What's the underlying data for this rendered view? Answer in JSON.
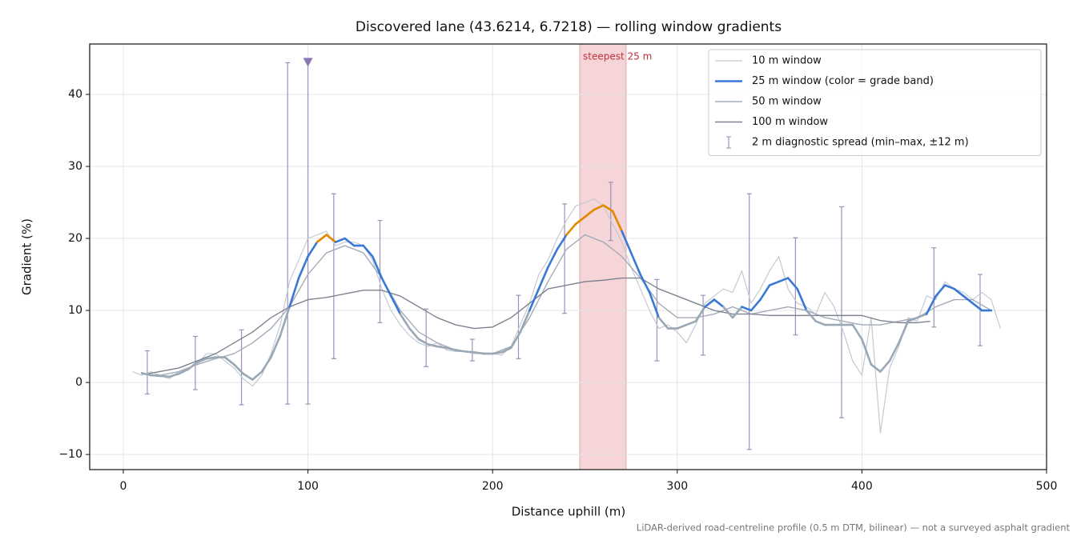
{
  "chart_data": {
    "type": "line",
    "title": "Discovered lane (43.6214, 6.7218) — rolling window gradients",
    "x_label": "Distance uphill (m)",
    "y_label": "Gradient (%)",
    "footnote": "LiDAR-derived road-centreline profile (0.5 m DTM, bilinear) — not a surveyed asphalt gradient",
    "xlim": [
      -18.2,
      500
    ],
    "ylim": [
      -12.1,
      47
    ],
    "xticks": [
      0,
      100,
      200,
      300,
      400,
      500
    ],
    "yticks": [
      {
        "value": -10,
        "label": "−10"
      },
      0,
      10,
      20,
      30,
      40
    ],
    "grid": true,
    "legend": "upper right",
    "highlight": {
      "x": [
        247.2,
        272.3
      ],
      "label": "steepest 25 m",
      "color": "#f5d5d8",
      "text_color": "#c0303a"
    },
    "series": [
      {
        "name": "10 m window",
        "color": "#c3cad3",
        "width": 1.2,
        "x": [
          5,
          10,
          15,
          20,
          25,
          30,
          35,
          40,
          45,
          50,
          55,
          60,
          65,
          70,
          75,
          80,
          85,
          90,
          95,
          100,
          105,
          110,
          115,
          120,
          125,
          130,
          135,
          140,
          145,
          150,
          155,
          160,
          165,
          170,
          175,
          180,
          185,
          190,
          195,
          200,
          205,
          210,
          215,
          220,
          225,
          230,
          235,
          240,
          245,
          250,
          255,
          260,
          265,
          270,
          275,
          280,
          285,
          290,
          295,
          300,
          305,
          310,
          315,
          320,
          325,
          330,
          335,
          340,
          345,
          350,
          355,
          360,
          365,
          370,
          375,
          380,
          385,
          390,
          395,
          400,
          405,
          410,
          415,
          420,
          425,
          430,
          435,
          440,
          445,
          450,
          455,
          460,
          465,
          470,
          475
        ],
        "values": [
          1.5,
          1,
          1.5,
          1,
          0.5,
          1.5,
          2,
          2.5,
          4,
          4,
          3,
          2,
          0.5,
          -0.5,
          1,
          4,
          8,
          14,
          17,
          20,
          20.5,
          21,
          19,
          19.5,
          19.5,
          19,
          17,
          13,
          10,
          8,
          6.5,
          5.5,
          5,
          5.5,
          4.5,
          4.3,
          4.3,
          4,
          4,
          4,
          3.8,
          5,
          8,
          11,
          15,
          17,
          20,
          22.5,
          24.5,
          25,
          25.5,
          24.5,
          22,
          19.5,
          16,
          13,
          10,
          7.5,
          8,
          7,
          5.5,
          8,
          11,
          12,
          13,
          12.5,
          15.5,
          11,
          13,
          15.5,
          17.5,
          13,
          11,
          10.5,
          9.5,
          12.5,
          10.5,
          7,
          3,
          1,
          9,
          -7,
          2,
          5,
          9,
          8.5,
          12,
          11.5,
          14,
          13,
          12.5,
          11.5,
          12.5,
          11.5,
          7.5
        ]
      },
      {
        "name": "25 m window (color = grade band)",
        "color": "#3a78d6",
        "width": 2.6,
        "bands": [
          {
            "max": 10,
            "color": "#9aa8b6"
          },
          {
            "max": 20,
            "color": "#3a78d6"
          },
          {
            "color": "#e08a00"
          }
        ],
        "x": [
          10,
          15,
          20,
          25,
          30,
          35,
          40,
          45,
          50,
          55,
          60,
          65,
          70,
          75,
          80,
          85,
          90,
          95,
          100,
          105,
          110,
          115,
          120,
          125,
          130,
          135,
          140,
          145,
          150,
          155,
          160,
          165,
          170,
          175,
          180,
          185,
          190,
          195,
          200,
          205,
          210,
          215,
          220,
          225,
          230,
          235,
          240,
          245,
          250,
          255,
          260,
          265,
          270,
          275,
          280,
          285,
          290,
          295,
          300,
          305,
          310,
          315,
          320,
          325,
          330,
          335,
          340,
          345,
          350,
          355,
          360,
          365,
          370,
          375,
          380,
          385,
          390,
          395,
          400,
          405,
          410,
          415,
          420,
          425,
          430,
          435,
          440,
          445,
          450,
          455,
          460,
          465,
          470
        ],
        "values": [
          1.3,
          1,
          0.9,
          0.8,
          1.2,
          1.8,
          2.8,
          3.3,
          3.5,
          3.5,
          2.5,
          1.2,
          0.4,
          1.5,
          3.5,
          6.5,
          10.5,
          14.5,
          17.5,
          19.5,
          20.5,
          19.5,
          20,
          19,
          19,
          17.5,
          14.5,
          12,
          9.5,
          7.5,
          6,
          5.3,
          5,
          4.8,
          4.5,
          4.3,
          4.2,
          4,
          4,
          4.2,
          4.8,
          7,
          10,
          13,
          16,
          18.5,
          20.5,
          22,
          23,
          24,
          24.6,
          23.8,
          21,
          18,
          15,
          12.5,
          9,
          7.5,
          7.5,
          8,
          8.5,
          10.5,
          11.5,
          10.5,
          9,
          10.5,
          10,
          11.5,
          13.5,
          14,
          14.5,
          13,
          10,
          8.5,
          8,
          8,
          8,
          8,
          6,
          2.5,
          1.5,
          3,
          5.5,
          8.5,
          9,
          9.5,
          12,
          13.5,
          13,
          12,
          11,
          10,
          10
        ]
      },
      {
        "name": "50 m window",
        "color": "#a3abb8",
        "width": 1.4,
        "x": [
          10,
          20,
          30,
          40,
          50,
          60,
          70,
          80,
          90,
          100,
          110,
          120,
          130,
          140,
          150,
          160,
          170,
          180,
          190,
          200,
          210,
          220,
          230,
          240,
          250,
          260,
          270,
          280,
          290,
          300,
          310,
          320,
          330,
          340,
          350,
          360,
          370,
          380,
          390,
          400,
          410,
          420,
          430,
          440,
          450,
          460,
          470
        ],
        "values": [
          1.2,
          1,
          1.5,
          2.5,
          3.3,
          4,
          5.5,
          7.5,
          10.5,
          15,
          18,
          19,
          18,
          14.5,
          10,
          7,
          5.5,
          4.5,
          4.2,
          4,
          5,
          9,
          14,
          18.5,
          20.5,
          19.5,
          17.5,
          14.5,
          11,
          9,
          9,
          9.5,
          10.5,
          9.5,
          10,
          10.5,
          10,
          9,
          8.5,
          8,
          8,
          8.5,
          9,
          10.5,
          11.5,
          11.5,
          10
        ]
      },
      {
        "name": "100 m window",
        "color": "#7d8390",
        "width": 1.4,
        "x": [
          13,
          30,
          50,
          60,
          70,
          80,
          90,
          100,
          110,
          120,
          130,
          140,
          150,
          160,
          170,
          180,
          190,
          200,
          210,
          220,
          230,
          240,
          250,
          260,
          270,
          280,
          290,
          300,
          310,
          320,
          330,
          340,
          350,
          360,
          370,
          380,
          390,
          400,
          410,
          420,
          430,
          437
        ],
        "values": [
          1.2,
          2,
          4,
          5.5,
          7,
          9,
          10.5,
          11.5,
          11.8,
          12.3,
          12.8,
          12.8,
          12,
          10.5,
          9,
          8,
          7.5,
          7.7,
          9,
          11,
          13,
          13.5,
          14,
          14.2,
          14.5,
          14.5,
          13,
          12,
          11,
          10,
          9.5,
          9.5,
          9.3,
          9.3,
          9.3,
          9.3,
          9.3,
          9.3,
          8.6,
          8.3,
          8.3,
          8.5
        ]
      }
    ],
    "errorbars": {
      "name": "2 m diagnostic spread (min–max, ±12 m)",
      "color": "#9a92b8",
      "x": [
        13,
        39,
        64,
        89,
        100,
        114,
        139,
        164,
        189,
        214,
        239,
        264,
        289,
        314,
        339,
        364,
        389,
        439,
        464
      ],
      "min": [
        -1.6,
        -1,
        -3.1,
        -3,
        -3,
        3.3,
        8.3,
        2.2,
        3,
        3.3,
        9.6,
        19.7,
        3,
        3.8,
        -9.3,
        6.6,
        -4.9,
        7.7,
        5.1
      ],
      "max": [
        4.4,
        6.4,
        7.3,
        44.4,
        44.4,
        26.2,
        22.5,
        10.2,
        6,
        12.1,
        24.8,
        27.8,
        14.3,
        12.1,
        26.2,
        20.1,
        24.4,
        18.7,
        15
      ]
    },
    "flag": {
      "x": 100,
      "y": 44.4,
      "color": "#8a78b0"
    }
  }
}
